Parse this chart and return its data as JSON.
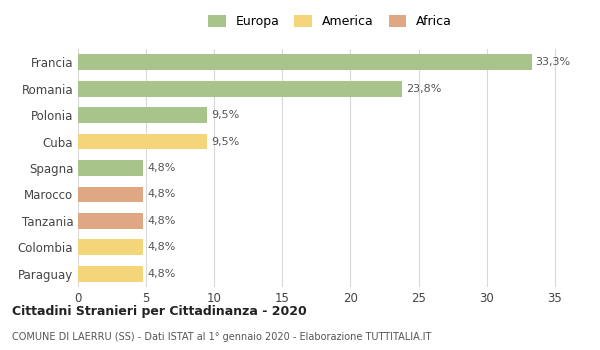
{
  "categories": [
    "Francia",
    "Romania",
    "Polonia",
    "Cuba",
    "Spagna",
    "Marocco",
    "Tanzania",
    "Colombia",
    "Paraguay"
  ],
  "values": [
    33.3,
    23.8,
    9.5,
    9.5,
    4.8,
    4.8,
    4.8,
    4.8,
    4.8
  ],
  "labels": [
    "33,3%",
    "23,8%",
    "9,5%",
    "9,5%",
    "4,8%",
    "4,8%",
    "4,8%",
    "4,8%",
    "4,8%"
  ],
  "bar_colors": [
    "#a8c48a",
    "#a8c48a",
    "#a8c48a",
    "#f5d57a",
    "#a8c48a",
    "#e0a882",
    "#e0a882",
    "#f5d57a",
    "#f5d57a"
  ],
  "legend_colors": [
    "#a8c48a",
    "#f5d57a",
    "#e0a882"
  ],
  "legend_labels": [
    "Europa",
    "America",
    "Africa"
  ],
  "xlim": [
    0,
    37
  ],
  "xticks": [
    0,
    5,
    10,
    15,
    20,
    25,
    30,
    35
  ],
  "title": "Cittadini Stranieri per Cittadinanza - 2020",
  "subtitle": "COMUNE DI LAERRU (SS) - Dati ISTAT al 1° gennaio 2020 - Elaborazione TUTTITALIA.IT",
  "background_color": "#ffffff",
  "grid_color": "#d8d8d8",
  "bar_label_fontsize": 8,
  "ytick_fontsize": 8.5,
  "xtick_fontsize": 8.5,
  "bar_height": 0.6
}
